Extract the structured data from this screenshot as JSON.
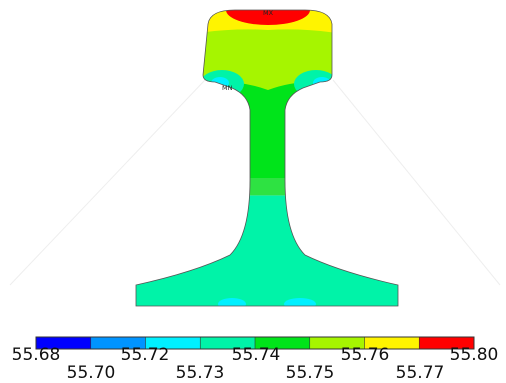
{
  "plot": {
    "max_marker": "MX",
    "min_marker": "MN"
  },
  "legend": {
    "colors": [
      "#0000ff",
      "#0094ff",
      "#00f0ff",
      "#00f3a8",
      "#00e41a",
      "#a6f500",
      "#fff400",
      "#ff0000"
    ],
    "labels_top": [
      "55.68",
      "55.72",
      "55.74",
      "55.76",
      "55.80"
    ],
    "labels_bottom": [
      "55.70",
      "55.73",
      "55.75",
      "55.77"
    ]
  }
}
